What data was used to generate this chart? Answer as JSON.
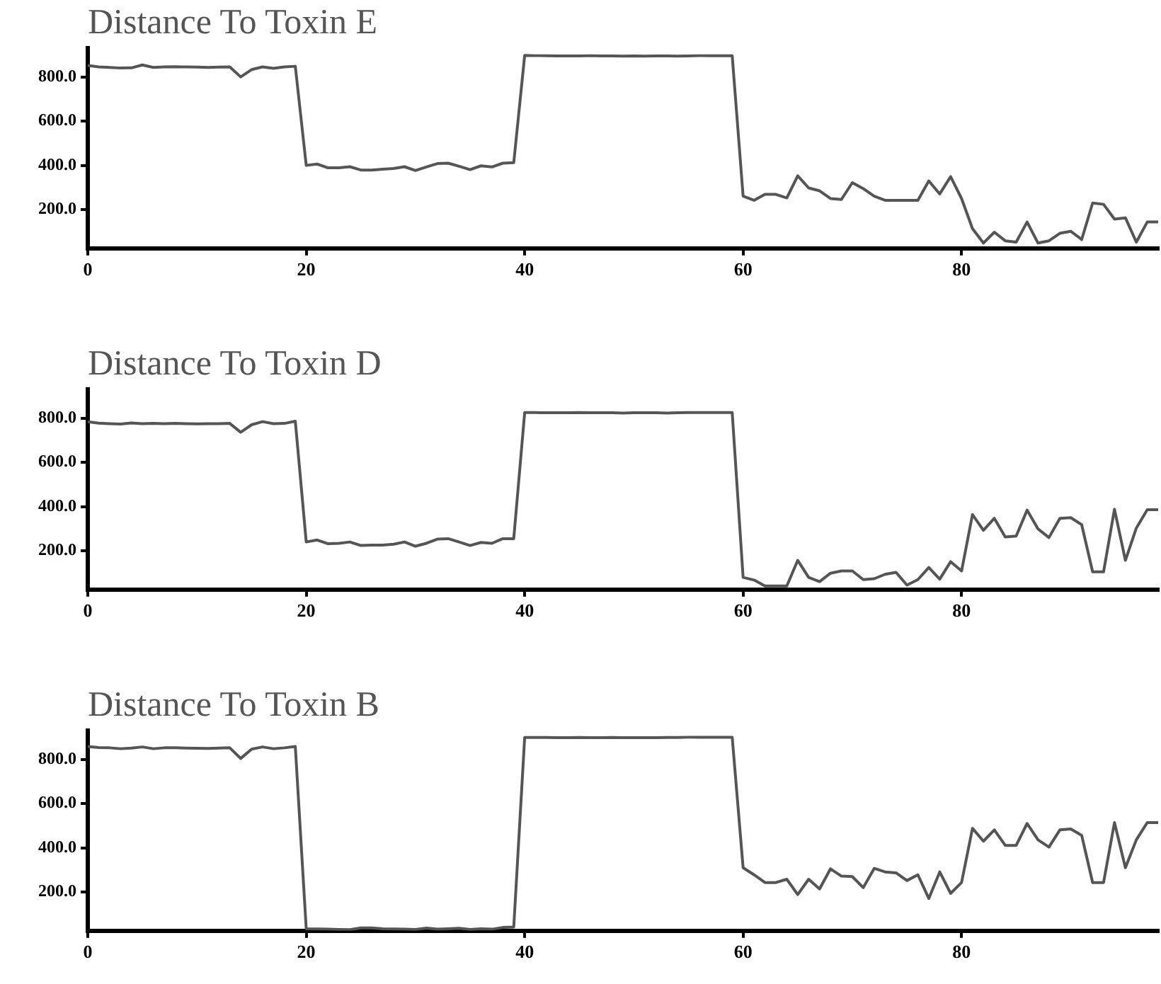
{
  "chart_data": [
    {
      "type": "line",
      "title": "Distance To Toxin E",
      "color": "#555555",
      "marker": "none",
      "x": [
        0,
        1,
        2,
        3,
        4,
        5,
        6,
        7,
        8,
        9,
        10,
        11,
        12,
        13,
        14,
        15,
        16,
        17,
        18,
        19,
        20,
        21,
        22,
        23,
        24,
        25,
        26,
        27,
        28,
        29,
        30,
        31,
        32,
        33,
        34,
        35,
        36,
        37,
        38,
        39,
        40,
        41,
        42,
        43,
        44,
        45,
        46,
        47,
        48,
        49,
        50,
        51,
        52,
        53,
        54,
        55,
        56,
        57,
        58,
        59,
        60,
        61,
        62,
        63,
        64,
        65,
        66,
        67,
        68,
        69,
        70,
        71,
        72,
        73,
        74,
        75,
        76,
        77,
        78,
        79,
        80,
        81,
        82,
        83,
        84,
        85,
        86,
        87,
        88,
        89,
        90,
        91,
        92,
        93,
        94,
        95,
        96,
        97,
        98
      ],
      "values": [
        852,
        845,
        843,
        840,
        841,
        854,
        843,
        845,
        846,
        845,
        844,
        843,
        844,
        845,
        800,
        833,
        845,
        839,
        845,
        848,
        400,
        406,
        389,
        389,
        394,
        379,
        379,
        383,
        386,
        394,
        377,
        393,
        408,
        410,
        396,
        381,
        398,
        393,
        410,
        412,
        897,
        896,
        896,
        895,
        895,
        895,
        896,
        895,
        895,
        894,
        895,
        894,
        895,
        895,
        894,
        895,
        896,
        896,
        896,
        896,
        261,
        242,
        269,
        269,
        253,
        353,
        298,
        285,
        250,
        246,
        322,
        295,
        261,
        242,
        242,
        242,
        242,
        330,
        271,
        349,
        250,
        114,
        49,
        98,
        59,
        53,
        144,
        49,
        59,
        93,
        102,
        65,
        230,
        224,
        157,
        163,
        53,
        144,
        144
      ],
      "xlim": [
        0,
        98
      ],
      "xticks": [
        0,
        20,
        40,
        60,
        80
      ],
      "ylim": [
        25,
        930
      ],
      "yticks": [
        {
          "value": 200,
          "label": "200.0"
        },
        {
          "value": 400,
          "label": "400.0"
        },
        {
          "value": 600,
          "label": "600.0"
        },
        {
          "value": 800,
          "label": "800.0"
        }
      ]
    },
    {
      "type": "line",
      "title": "Distance To Toxin D",
      "color": "#555555",
      "marker": "none",
      "x": [
        0,
        1,
        2,
        3,
        4,
        5,
        6,
        7,
        8,
        9,
        10,
        11,
        12,
        13,
        14,
        15,
        16,
        17,
        18,
        19,
        20,
        21,
        22,
        23,
        24,
        25,
        26,
        27,
        28,
        29,
        30,
        31,
        32,
        33,
        34,
        35,
        36,
        37,
        38,
        39,
        40,
        41,
        42,
        43,
        44,
        45,
        46,
        47,
        48,
        49,
        50,
        51,
        52,
        53,
        54,
        55,
        56,
        57,
        58,
        59,
        60,
        61,
        62,
        63,
        64,
        65,
        66,
        67,
        68,
        69,
        70,
        71,
        72,
        73,
        74,
        75,
        76,
        77,
        78,
        79,
        80,
        81,
        82,
        83,
        84,
        85,
        86,
        87,
        88,
        89,
        90,
        91,
        92,
        93,
        94,
        95,
        96,
        97,
        98
      ],
      "values": [
        784,
        777,
        775,
        773,
        778,
        775,
        776,
        775,
        776,
        775,
        774,
        775,
        775,
        776,
        736,
        770,
        784,
        775,
        776,
        786,
        240,
        249,
        232,
        234,
        240,
        224,
        226,
        226,
        230,
        240,
        221,
        234,
        253,
        255,
        240,
        224,
        238,
        234,
        255,
        255,
        825,
        825,
        824,
        824,
        824,
        825,
        824,
        824,
        824,
        823,
        824,
        824,
        824,
        823,
        824,
        825,
        825,
        825,
        825,
        825,
        80,
        68,
        41,
        41,
        41,
        157,
        80,
        61,
        99,
        109,
        109,
        70,
        74,
        94,
        103,
        45,
        70,
        125,
        72,
        151,
        109,
        364,
        293,
        347,
        263,
        267,
        384,
        299,
        260,
        347,
        350,
        318,
        105,
        105,
        388,
        157,
        303,
        386,
        386
      ],
      "xlim": [
        0,
        98
      ],
      "xticks": [
        0,
        20,
        40,
        60,
        80
      ],
      "ylim": [
        25,
        930
      ],
      "yticks": [
        {
          "value": 200,
          "label": "200.0"
        },
        {
          "value": 400,
          "label": "400.0"
        },
        {
          "value": 600,
          "label": "600.0"
        },
        {
          "value": 800,
          "label": "800.0"
        }
      ]
    },
    {
      "type": "line",
      "title": "Distance To Toxin B",
      "color": "#555555",
      "marker": "none",
      "x": [
        0,
        1,
        2,
        3,
        4,
        5,
        6,
        7,
        8,
        9,
        10,
        11,
        12,
        13,
        14,
        15,
        16,
        17,
        18,
        19,
        20,
        21,
        22,
        23,
        24,
        25,
        26,
        27,
        28,
        29,
        30,
        31,
        32,
        33,
        34,
        35,
        36,
        37,
        38,
        39,
        40,
        41,
        42,
        43,
        44,
        45,
        46,
        47,
        48,
        49,
        50,
        51,
        52,
        53,
        54,
        55,
        56,
        57,
        58,
        59,
        60,
        61,
        62,
        63,
        64,
        65,
        66,
        67,
        68,
        69,
        70,
        71,
        72,
        73,
        74,
        75,
        76,
        77,
        78,
        79,
        80,
        81,
        82,
        83,
        84,
        85,
        86,
        87,
        88,
        89,
        90,
        91,
        92,
        93,
        94,
        95,
        96,
        97,
        98
      ],
      "values": [
        858,
        853,
        852,
        848,
        851,
        856,
        848,
        852,
        852,
        851,
        850,
        849,
        851,
        852,
        804,
        846,
        856,
        848,
        852,
        858,
        34,
        33,
        32,
        31,
        30,
        38,
        38,
        34,
        33,
        32,
        31,
        37,
        32,
        34,
        36,
        31,
        34,
        32,
        40,
        42,
        899,
        899,
        899,
        898,
        898,
        899,
        898,
        898,
        899,
        898,
        898,
        898,
        898,
        899,
        899,
        900,
        900,
        900,
        900,
        900,
        310,
        278,
        243,
        243,
        258,
        189,
        258,
        214,
        305,
        272,
        270,
        220,
        307,
        291,
        287,
        252,
        278,
        171,
        291,
        194,
        243,
        488,
        430,
        481,
        411,
        411,
        510,
        436,
        403,
        481,
        485,
        456,
        243,
        243,
        514,
        310,
        436,
        514,
        514
      ],
      "xlim": [
        0,
        98
      ],
      "xticks": [
        0,
        20,
        40,
        60,
        80
      ],
      "ylim": [
        25,
        930
      ],
      "yticks": [
        {
          "value": 200,
          "label": "200.0"
        },
        {
          "value": 400,
          "label": "400.0"
        },
        {
          "value": 600,
          "label": "600.0"
        },
        {
          "value": 800,
          "label": "800.0"
        }
      ]
    }
  ]
}
